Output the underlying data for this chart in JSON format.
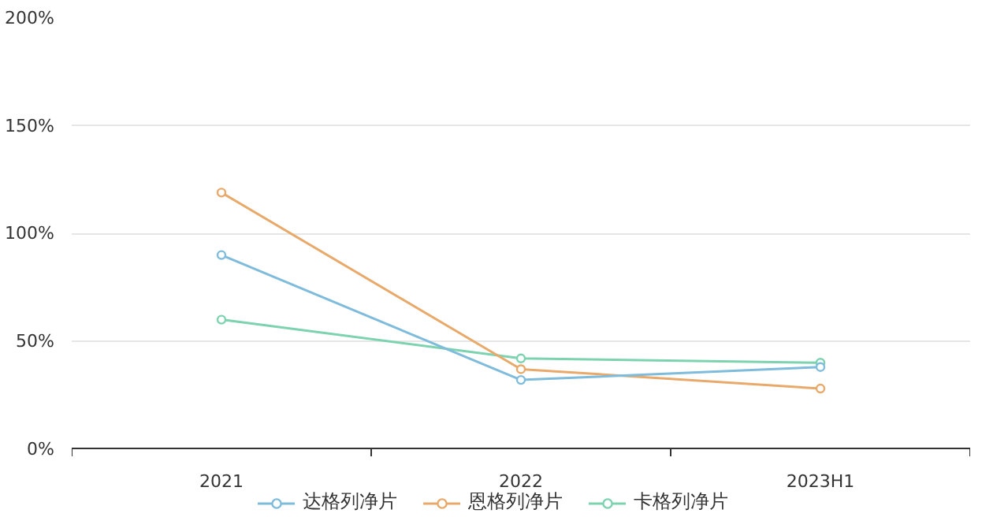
{
  "chart_data": {
    "type": "line",
    "categories": [
      "2021",
      "2022",
      "2023H1"
    ],
    "series": [
      {
        "name": "达格列净片",
        "color": "#7fbcdc",
        "values": [
          90,
          32,
          38
        ]
      },
      {
        "name": "恩格列净片",
        "color": "#e8a96a",
        "values": [
          119,
          37,
          28
        ]
      },
      {
        "name": "卡格列净片",
        "color": "#7dd3b0",
        "values": [
          60,
          42,
          40
        ]
      }
    ],
    "ylim": [
      0,
      200
    ],
    "yticks": [
      {
        "value": 0,
        "label": "0%"
      },
      {
        "value": 50,
        "label": "50%"
      },
      {
        "value": 100,
        "label": "100%"
      },
      {
        "value": 150,
        "label": "150%"
      },
      {
        "value": 200,
        "label": "200%"
      }
    ],
    "grid": "y",
    "legend": "bottom",
    "marker": "circle"
  }
}
